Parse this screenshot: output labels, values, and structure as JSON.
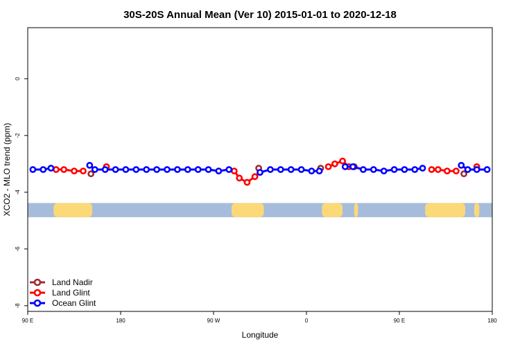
{
  "chart_data": {
    "type": "line",
    "title": "30S-20S Annual Mean (Ver 10)   2015-01-01 to 2020-12-18",
    "xlabel": "Longitude",
    "ylabel": "XCO2 - MLO trend (ppm)",
    "xlim": [
      0,
      360
    ],
    "ylim": [
      -8.2,
      1.8
    ],
    "x_ticks": [
      {
        "value": 0,
        "label": "90 E"
      },
      {
        "value": 72,
        "label": "180"
      },
      {
        "value": 144,
        "label": "90 W"
      },
      {
        "value": 216,
        "label": "0"
      },
      {
        "value": 288,
        "label": "90 E"
      },
      {
        "value": 360,
        "label": "180"
      }
    ],
    "y_ticks": [
      {
        "value": 0,
        "label": "0"
      },
      {
        "value": -2,
        "label": "-2"
      },
      {
        "value": -4,
        "label": "-4"
      },
      {
        "value": -6,
        "label": "-6"
      },
      {
        "value": -8,
        "label": "-8"
      }
    ],
    "grid": false,
    "legend_position": "bottom-left",
    "map_strip": {
      "y_range": [
        -4.38,
        -4.88
      ],
      "ocean_color": "#a7bcdb",
      "land_color": "#fbd979",
      "land_segments": [
        [
          20,
          50
        ],
        [
          158,
          183
        ],
        [
          228,
          244
        ],
        [
          253,
          256
        ],
        [
          308,
          339
        ],
        [
          346,
          350
        ]
      ]
    },
    "series": [
      {
        "name": "Land Nadir",
        "color": "#a0292e",
        "x": [
          49,
          179,
          227,
          253,
          338
        ],
        "y": [
          -3.35,
          -3.15,
          -3.15,
          -3.1,
          -3.35
        ]
      },
      {
        "name": "Land Glint",
        "color": "#ff0000",
        "x": [
          22,
          28,
          36,
          43,
          61,
          160,
          164,
          170,
          176,
          180,
          233,
          238,
          244,
          249,
          313,
          318,
          325,
          332,
          348
        ],
        "y": [
          -3.2,
          -3.2,
          -3.25,
          -3.25,
          -3.1,
          -3.25,
          -3.5,
          -3.65,
          -3.45,
          -3.3,
          -3.1,
          -3.0,
          -2.9,
          -3.1,
          -3.2,
          -3.2,
          -3.25,
          -3.25,
          -3.1
        ]
      },
      {
        "name": "Ocean Glint",
        "color": "#0000ff",
        "x": [
          4,
          12,
          18,
          48,
          52,
          60,
          68,
          76,
          84,
          92,
          100,
          108,
          116,
          124,
          132,
          140,
          148,
          156,
          180,
          188,
          196,
          204,
          212,
          220,
          226,
          246,
          252,
          260,
          268,
          276,
          284,
          292,
          300,
          306,
          336,
          341,
          348,
          356
        ],
        "y": [
          -3.2,
          -3.2,
          -3.15,
          -3.05,
          -3.2,
          -3.2,
          -3.2,
          -3.2,
          -3.2,
          -3.2,
          -3.2,
          -3.2,
          -3.2,
          -3.2,
          -3.2,
          -3.2,
          -3.25,
          -3.2,
          -3.3,
          -3.2,
          -3.2,
          -3.2,
          -3.2,
          -3.25,
          -3.25,
          -3.1,
          -3.1,
          -3.2,
          -3.2,
          -3.25,
          -3.2,
          -3.2,
          -3.2,
          -3.15,
          -3.05,
          -3.2,
          -3.2,
          -3.2
        ]
      }
    ]
  }
}
